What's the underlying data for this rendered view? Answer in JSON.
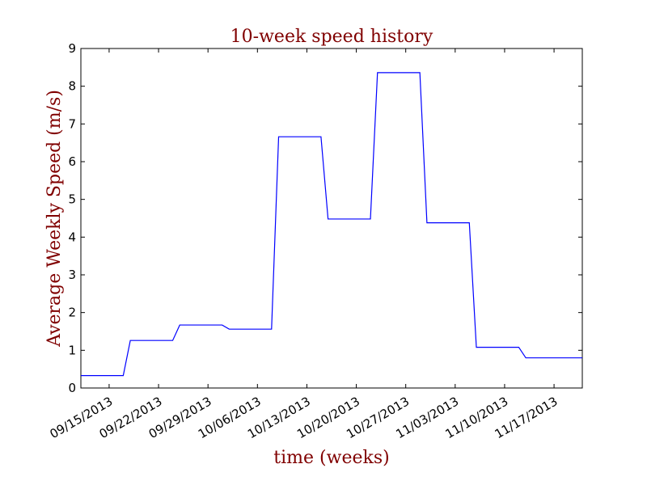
{
  "chart_data": {
    "type": "line",
    "title": "10-week speed history",
    "xlabel": "time (weeks)",
    "ylabel": "Average Weekly Speed (m/s)",
    "ylim": [
      0,
      9
    ],
    "yticks": [
      0,
      1,
      2,
      3,
      4,
      5,
      6,
      7,
      8,
      9
    ],
    "xlim": [
      "2013-09-11",
      "2013-11-21"
    ],
    "xticks": [
      {
        "date": "2013-09-15",
        "label": "09/15/2013"
      },
      {
        "date": "2013-09-22",
        "label": "09/22/2013"
      },
      {
        "date": "2013-09-29",
        "label": "09/29/2013"
      },
      {
        "date": "2013-10-06",
        "label": "10/06/2013"
      },
      {
        "date": "2013-10-13",
        "label": "10/13/2013"
      },
      {
        "date": "2013-10-20",
        "label": "10/20/2013"
      },
      {
        "date": "2013-10-27",
        "label": "10/27/2013"
      },
      {
        "date": "2013-11-03",
        "label": "11/03/2013"
      },
      {
        "date": "2013-11-10",
        "label": "11/10/2013"
      },
      {
        "date": "2013-11-17",
        "label": "11/17/2013"
      }
    ],
    "grid": false,
    "legend": "none",
    "series": [
      {
        "color": "#0000ff",
        "points": [
          {
            "x": "2013-09-11",
            "y": 0.33
          },
          {
            "x": "2013-09-17",
            "y": 0.33
          },
          {
            "x": "2013-09-18",
            "y": 1.26
          },
          {
            "x": "2013-09-24",
            "y": 1.26
          },
          {
            "x": "2013-09-25",
            "y": 1.67
          },
          {
            "x": "2013-10-01",
            "y": 1.67
          },
          {
            "x": "2013-10-02",
            "y": 1.56
          },
          {
            "x": "2013-10-08",
            "y": 1.56
          },
          {
            "x": "2013-10-09",
            "y": 6.66
          },
          {
            "x": "2013-10-15",
            "y": 6.66
          },
          {
            "x": "2013-10-16",
            "y": 4.48
          },
          {
            "x": "2013-10-22",
            "y": 4.48
          },
          {
            "x": "2013-10-23",
            "y": 8.36
          },
          {
            "x": "2013-10-29",
            "y": 8.36
          },
          {
            "x": "2013-10-30",
            "y": 4.38
          },
          {
            "x": "2013-11-05",
            "y": 4.38
          },
          {
            "x": "2013-11-06",
            "y": 1.08
          },
          {
            "x": "2013-11-12",
            "y": 1.08
          },
          {
            "x": "2013-11-13",
            "y": 0.8
          },
          {
            "x": "2013-11-21",
            "y": 0.8
          }
        ]
      }
    ],
    "text_color": "#800000"
  }
}
